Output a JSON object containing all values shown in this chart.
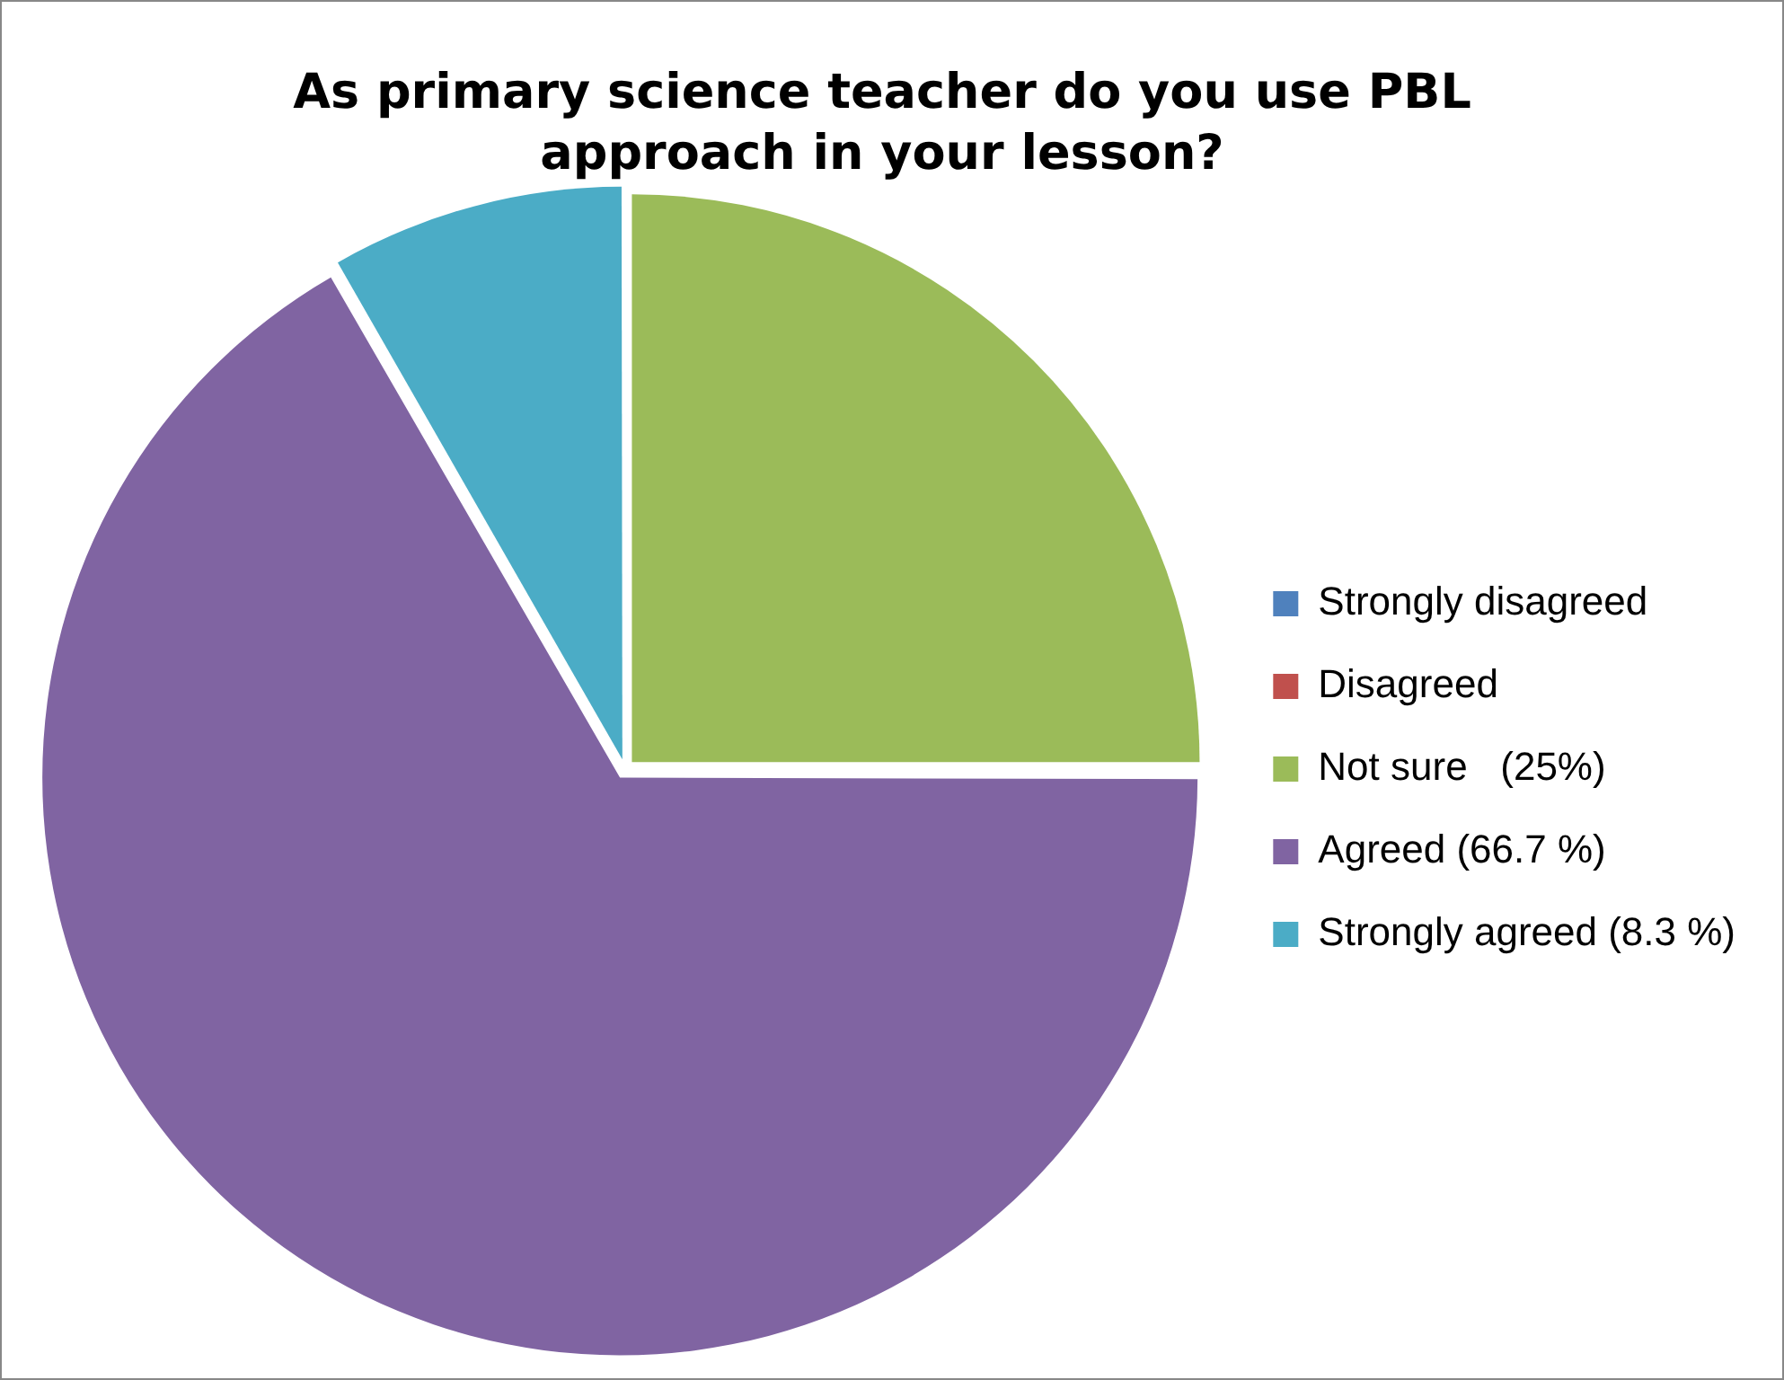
{
  "chart_data": {
    "type": "pie",
    "title": "As primary science teacher do you use PBL approach in your lesson?",
    "categories": [
      "Strongly disagreed",
      "Disagreed",
      "Not sure   (25%)",
      "Agreed (66.7 %)",
      "Strongly agreed (8.3 %)"
    ],
    "values": [
      0,
      0,
      25,
      66.7,
      8.3
    ],
    "colors": [
      "#4f81bd",
      "#c0504d",
      "#9bbb59",
      "#8064a2",
      "#4bacc6"
    ],
    "legend": "right"
  }
}
